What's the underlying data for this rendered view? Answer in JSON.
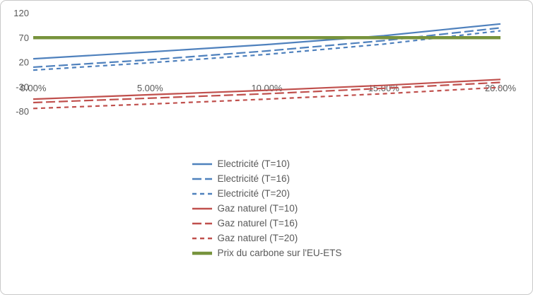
{
  "chart_data": {
    "type": "line",
    "title": "",
    "x": [
      0,
      5,
      10,
      15,
      20
    ],
    "x_axis": {
      "tick_labels": [
        "0.00%",
        "5.00%",
        "10.00%",
        "15.00%",
        "20.00%"
      ],
      "tick_values": [
        0,
        5,
        10,
        15,
        20
      ],
      "range": [
        0,
        20
      ]
    },
    "y_axis": {
      "tick_labels": [
        "120",
        "70",
        "20",
        "-30",
        "-80"
      ],
      "tick_values": [
        120,
        70,
        20,
        -30,
        -80
      ],
      "range": [
        -80,
        120
      ]
    },
    "grid": false,
    "legend_position": "bottom",
    "series": [
      {
        "name": "Electricité (T=10)",
        "color": "#4F81BD",
        "style": "solid",
        "width": 2.2,
        "values": [
          27,
          41,
          56,
          74,
          98
        ]
      },
      {
        "name": "Electricité (T=16)",
        "color": "#4F81BD",
        "style": "long-dash",
        "width": 2.2,
        "values": [
          10,
          25,
          43,
          64,
          90
        ]
      },
      {
        "name": "Electricité (T=20)",
        "color": "#4F81BD",
        "style": "dash",
        "width": 2.2,
        "values": [
          4,
          19,
          36,
          57,
          84
        ]
      },
      {
        "name": "Gaz naturel (T=10)",
        "color": "#C0504D",
        "style": "solid",
        "width": 2.2,
        "values": [
          -55,
          -46,
          -37,
          -27,
          -15
        ]
      },
      {
        "name": "Gaz naturel (T=16)",
        "color": "#C0504D",
        "style": "long-dash",
        "width": 2.2,
        "values": [
          -62,
          -53,
          -44,
          -33,
          -21
        ]
      },
      {
        "name": "Gaz naturel (T=20)",
        "color": "#C0504D",
        "style": "dash",
        "width": 2.2,
        "values": [
          -74,
          -65,
          -55,
          -44,
          -31
        ]
      },
      {
        "name": "Prix du carbone sur l'EU-ETS",
        "color": "#77933C",
        "style": "solid",
        "width": 4.5,
        "values": [
          70,
          70,
          70,
          70,
          70
        ]
      }
    ]
  },
  "colors": {
    "axis_text": "#595959",
    "frame_border": "#c9c9c9",
    "background": "#ffffff"
  }
}
